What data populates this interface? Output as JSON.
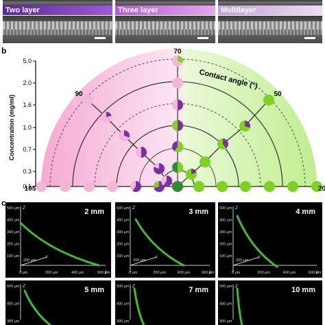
{
  "panel_a": {
    "strip_labels": [
      "Two layer",
      "Three layer",
      "Multilayer"
    ],
    "colors": {
      "two": "#7b3fb8",
      "three": "#c07bd6",
      "multi": "#b08ac8"
    }
  },
  "panel_b": {
    "label": "b",
    "ylabel": "Concentration (mg/ml)",
    "angle_title": "Contact angle (°)",
    "conc_ticks": [
      "5.0",
      "2.0",
      "1.6",
      "1.2",
      "1.0",
      "0.7",
      "0.5",
      "0.3",
      "0.1"
    ],
    "angle_labels": {
      "a105": "105",
      "a90": "90",
      "a70": "70",
      "a50": "50",
      "a20": "20"
    },
    "colors": {
      "pink": "#f2b6d6",
      "purple": "#7a2fa6",
      "green": "#7ed321",
      "darkgreen": "#2e8b2e"
    }
  },
  "panel_c": {
    "label": "c",
    "distances": [
      "2 mm",
      "3 mm",
      "4 mm",
      "5 mm",
      "7 mm",
      "10 mm"
    ],
    "axis_z": "Z",
    "axis_x": "X",
    "axis_y": "Y",
    "ticks_z": [
      "500 μm",
      "400 μm",
      "300 μm",
      "200 μm",
      "100 μm"
    ],
    "ticks_x": [
      "0 μm",
      "200 μm",
      "400 μm",
      "600 μm"
    ],
    "tick_y": "200 μm"
  }
}
